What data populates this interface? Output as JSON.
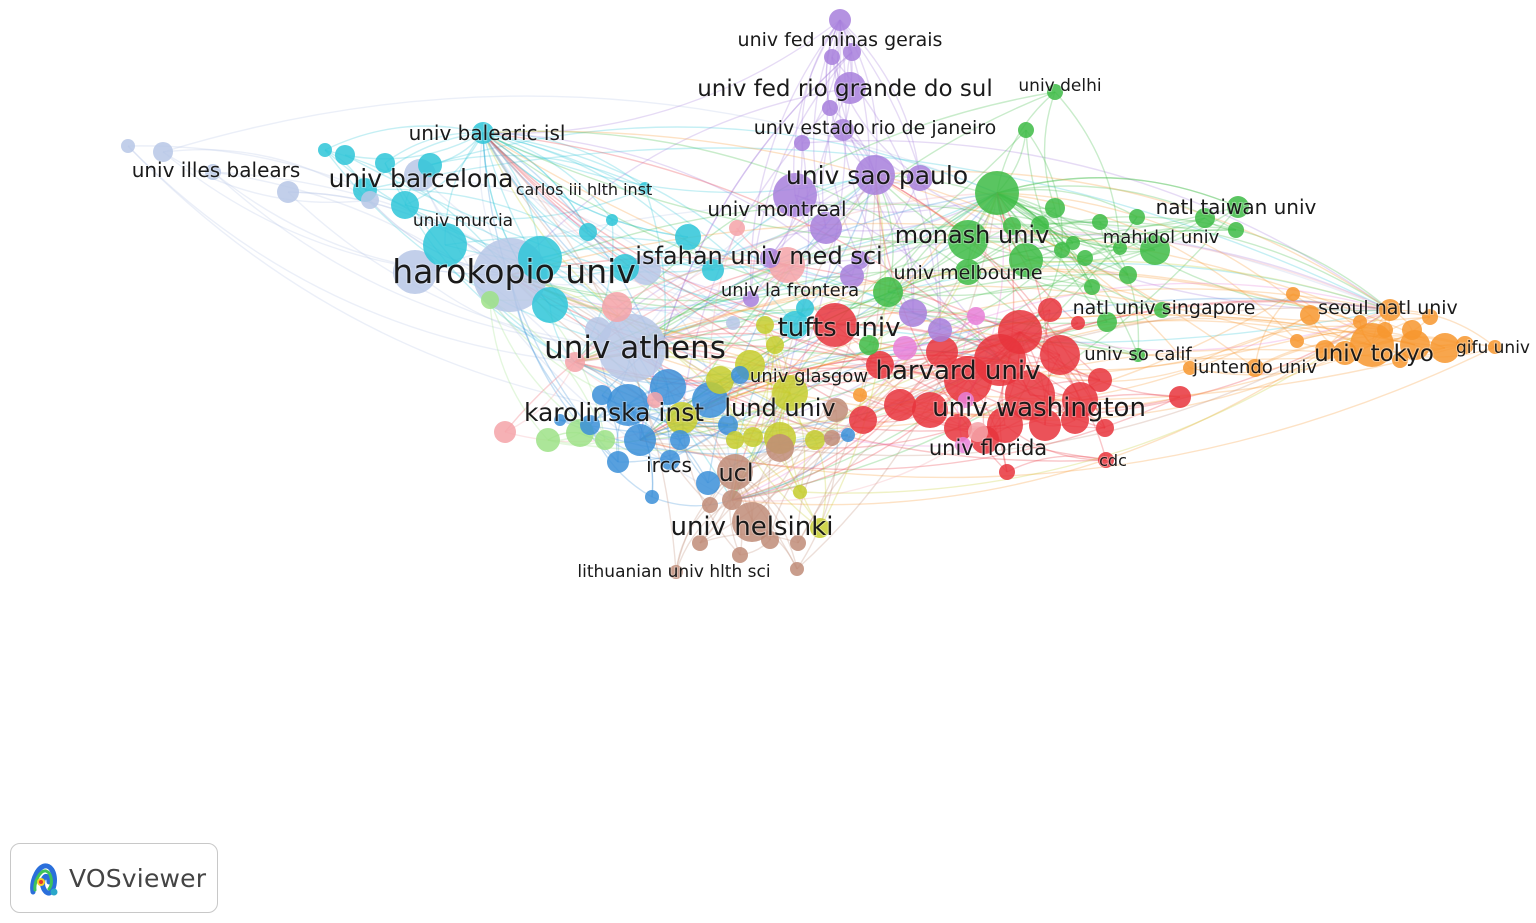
{
  "brand": {
    "label": "VOSviewer",
    "icon": "vosviewer-logo-icon"
  },
  "palette": {
    "light-blue": "#b7c7e6",
    "cyan": "#2ec6d8",
    "purple": "#a77fdc",
    "green": "#3dbb45",
    "red": "#e8343c",
    "orange": "#f7962e",
    "yellow": "#c6cc2e",
    "blue": "#3b8fd8",
    "brown": "#bf8c78",
    "pink": "#f4a3a8",
    "light-green": "#9ee287",
    "magenta": "#e77fd8"
  },
  "clusters": [
    {
      "id": "light-blue",
      "labels": [
        "harokopio univ",
        "univ athens",
        "univ illes balears"
      ]
    },
    {
      "id": "cyan",
      "labels": [
        "univ barcelona",
        "univ balearic isl",
        "carlos iii hlth inst",
        "univ murcia"
      ]
    },
    {
      "id": "purple",
      "labels": [
        "univ fed minas gerais",
        "univ fed rio grande do sul",
        "univ estado rio de janeiro",
        "univ sao paulo",
        "univ montreal"
      ]
    },
    {
      "id": "green",
      "labels": [
        "univ delhi",
        "natl taiwan univ",
        "monash univ",
        "mahidol univ",
        "univ melbourne",
        "natl univ singapore"
      ]
    },
    {
      "id": "red",
      "labels": [
        "harvard univ",
        "univ washington",
        "univ florida",
        "cdc",
        "univ so calif"
      ]
    },
    {
      "id": "orange",
      "labels": [
        "seoul natl univ",
        "univ tokyo",
        "gifu univ",
        "juntendo univ"
      ]
    },
    {
      "id": "yellow",
      "labels": [
        "lund univ",
        "univ glasgow"
      ]
    },
    {
      "id": "blue",
      "labels": [
        "karolinska inst",
        "irccs"
      ]
    },
    {
      "id": "brown",
      "labels": [
        "ucl",
        "univ helsinki",
        "lithuanian univ hlth sci"
      ]
    },
    {
      "id": "pink",
      "labels": [
        "isfahan univ med sci"
      ]
    },
    {
      "id": "teal",
      "labels": [
        "tufts univ"
      ]
    },
    {
      "id": "magenta",
      "labels": [
        "univ la frontera"
      ]
    }
  ],
  "labels": [
    {
      "text": "univ fed minas gerais",
      "cluster": "purple"
    },
    {
      "text": "univ fed rio grande do sul",
      "cluster": "purple"
    },
    {
      "text": "univ delhi",
      "cluster": "green"
    },
    {
      "text": "univ balearic isl",
      "cluster": "cyan"
    },
    {
      "text": "univ estado rio de janeiro",
      "cluster": "purple"
    },
    {
      "text": "univ illes balears",
      "cluster": "light-blue"
    },
    {
      "text": "univ barcelona",
      "cluster": "cyan"
    },
    {
      "text": "carlos iii hlth inst",
      "cluster": "cyan"
    },
    {
      "text": "univ sao paulo",
      "cluster": "purple"
    },
    {
      "text": "univ montreal",
      "cluster": "purple"
    },
    {
      "text": "natl taiwan univ",
      "cluster": "green"
    },
    {
      "text": "univ murcia",
      "cluster": "cyan"
    },
    {
      "text": "monash univ",
      "cluster": "green"
    },
    {
      "text": "mahidol univ",
      "cluster": "green"
    },
    {
      "text": "isfahan univ med sci",
      "cluster": "pink"
    },
    {
      "text": "harokopio univ",
      "cluster": "light-blue"
    },
    {
      "text": "univ melbourne",
      "cluster": "green"
    },
    {
      "text": "univ la frontera",
      "cluster": "magenta"
    },
    {
      "text": "natl univ singapore",
      "cluster": "green"
    },
    {
      "text": "seoul natl univ",
      "cluster": "orange"
    },
    {
      "text": "tufts univ",
      "cluster": "teal"
    },
    {
      "text": "univ athens",
      "cluster": "light-blue"
    },
    {
      "text": "univ so calif",
      "cluster": "red"
    },
    {
      "text": "gifu univ",
      "cluster": "orange"
    },
    {
      "text": "univ tokyo",
      "cluster": "orange"
    },
    {
      "text": "juntendo univ",
      "cluster": "orange"
    },
    {
      "text": "harvard univ",
      "cluster": "red"
    },
    {
      "text": "univ glasgow",
      "cluster": "yellow"
    },
    {
      "text": "univ washington",
      "cluster": "red"
    },
    {
      "text": "lund univ",
      "cluster": "yellow"
    },
    {
      "text": "karolinska inst",
      "cluster": "blue"
    },
    {
      "text": "univ florida",
      "cluster": "red"
    },
    {
      "text": "cdc",
      "cluster": "red"
    },
    {
      "text": "irccs",
      "cluster": "blue"
    },
    {
      "text": "ucl",
      "cluster": "brown"
    },
    {
      "text": "univ helsinki",
      "cluster": "brown"
    },
    {
      "text": "lithuanian univ hlth sci",
      "cluster": "brown"
    }
  ]
}
